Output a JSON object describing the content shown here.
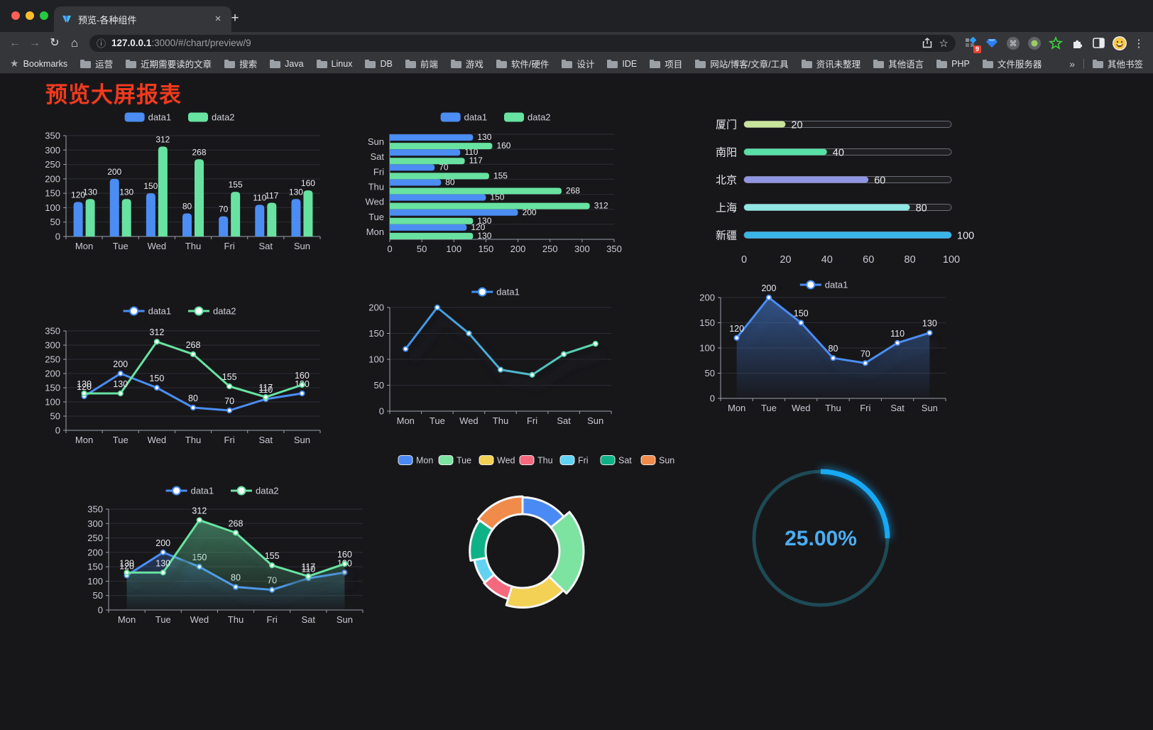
{
  "browser": {
    "window_buttons": {
      "close_color": "#ff5f57",
      "minimize_color": "#febc2e",
      "zoom_color": "#28c840"
    },
    "tab": {
      "title": "预览-各种组件",
      "close_label": "×",
      "new_tab_label": "+"
    },
    "address": {
      "host": "127.0.0.1",
      "rest": ":3000/#/chart/preview/9"
    },
    "extension_badge": "9",
    "bookmarks_bar": {
      "label": "Bookmarks",
      "folders": [
        "运营",
        "近期需要读的文章",
        "搜索",
        "Java",
        "Linux",
        "DB",
        "前端",
        "游戏",
        "软件/硬件",
        "设计",
        "IDE",
        "项目",
        "网站/博客/文章/工具",
        "资讯未整理",
        "其他语言",
        "PHP",
        "文件服务器"
      ],
      "overflow": "»",
      "other": "其他书签"
    }
  },
  "page": {
    "title": "预览大屏报表",
    "title_color": "#f23a1d"
  },
  "chart_data": [
    {
      "id": "grouped-bar",
      "type": "bar",
      "legend_position": "top",
      "grid": true,
      "categories": [
        "Mon",
        "Tue",
        "Wed",
        "Thu",
        "Fri",
        "Sat",
        "Sun"
      ],
      "series": [
        {
          "name": "data1",
          "color": "#4b8df2",
          "values": [
            120,
            200,
            150,
            80,
            70,
            110,
            130
          ]
        },
        {
          "name": "data2",
          "color": "#68e2a1",
          "values": [
            130,
            130,
            312,
            268,
            155,
            117,
            160
          ]
        }
      ],
      "ylim": [
        0,
        350
      ],
      "ystep": 50
    },
    {
      "id": "horizontal-bar",
      "type": "bar",
      "orientation": "horizontal",
      "legend_position": "top",
      "grid": true,
      "categories": [
        "Mon",
        "Tue",
        "Wed",
        "Thu",
        "Fri",
        "Sat",
        "Sun"
      ],
      "series": [
        {
          "name": "data1",
          "color": "#4b8df2",
          "values": [
            120,
            200,
            150,
            80,
            70,
            110,
            130
          ]
        },
        {
          "name": "data2",
          "color": "#68e2a1",
          "values": [
            130,
            130,
            312,
            268,
            155,
            117,
            160
          ]
        }
      ],
      "xlim": [
        0,
        350
      ],
      "xstep": 50
    },
    {
      "id": "progress-bars",
      "type": "bar",
      "subtype": "progress",
      "items": [
        {
          "label": "厦门",
          "value": 20,
          "color": "#c9e59b"
        },
        {
          "label": "南阳",
          "value": 40,
          "color": "#57dfa6"
        },
        {
          "label": "北京",
          "value": 60,
          "color": "#9096e2"
        },
        {
          "label": "上海",
          "value": 80,
          "color": "#8fe7e2"
        },
        {
          "label": "新疆",
          "value": 100,
          "color": "#3ab5e8"
        }
      ],
      "xlim": [
        0,
        100
      ],
      "xticks": [
        0,
        20,
        40,
        60,
        80,
        100
      ]
    },
    {
      "id": "multi-line",
      "type": "line",
      "legend_position": "top",
      "labels": true,
      "categories": [
        "Mon",
        "Tue",
        "Wed",
        "Thu",
        "Fri",
        "Sat",
        "Sun"
      ],
      "series": [
        {
          "name": "data1",
          "color": "#4b8df2",
          "values": [
            120,
            200,
            150,
            80,
            70,
            110,
            130
          ]
        },
        {
          "name": "data2",
          "color": "#68e2a1",
          "values": [
            130,
            130,
            312,
            268,
            155,
            117,
            160
          ]
        }
      ],
      "ylim": [
        0,
        350
      ],
      "ystep": 50
    },
    {
      "id": "gradient-line",
      "type": "line",
      "legend_position": "top",
      "labels": false,
      "shadow": true,
      "categories": [
        "Mon",
        "Tue",
        "Wed",
        "Thu",
        "Fri",
        "Sat",
        "Sun"
      ],
      "series": [
        {
          "name": "data1",
          "color_start": "#3f8df2",
          "color_end": "#5fe2a0",
          "values": [
            120,
            200,
            150,
            80,
            70,
            110,
            130
          ]
        }
      ],
      "ylim": [
        0,
        200
      ],
      "ystep": 50
    },
    {
      "id": "area-line",
      "type": "line",
      "legend_position": "top",
      "labels": true,
      "shadow": true,
      "categories": [
        "Mon",
        "Tue",
        "Wed",
        "Thu",
        "Fri",
        "Sat",
        "Sun"
      ],
      "series": [
        {
          "name": "data1",
          "color": "#4b8df2",
          "values": [
            120,
            200,
            150,
            80,
            70,
            110,
            130
          ],
          "area": true
        }
      ],
      "ylim": [
        0,
        200
      ],
      "ystep": 50
    },
    {
      "id": "multi-area-line",
      "type": "line",
      "legend_position": "top",
      "labels": true,
      "shadow": true,
      "categories": [
        "Mon",
        "Tue",
        "Wed",
        "Thu",
        "Fri",
        "Sat",
        "Sun"
      ],
      "series": [
        {
          "name": "data1",
          "color": "#4b8df2",
          "values": [
            120,
            200,
            150,
            80,
            70,
            110,
            130
          ],
          "area": true
        },
        {
          "name": "data2",
          "color": "#68e2a1",
          "values": [
            130,
            130,
            312,
            268,
            155,
            117,
            160
          ],
          "area": true
        }
      ],
      "ylim": [
        0,
        350
      ],
      "ystep": 50
    },
    {
      "id": "rose-donut",
      "type": "pie",
      "subtype": "rose-donut",
      "legend_position": "top",
      "categories": [
        "Mon",
        "Tue",
        "Wed",
        "Thu",
        "Fri",
        "Sat",
        "Sun"
      ],
      "values": [
        120,
        200,
        150,
        80,
        70,
        110,
        130
      ],
      "colors": [
        "#4a8af4",
        "#7de3a1",
        "#f2d154",
        "#f4697d",
        "#62d2f2",
        "#0fb286",
        "#f08b4b"
      ]
    },
    {
      "id": "gauge",
      "type": "gauge",
      "value": 25,
      "display": "25.00%",
      "color": "#17a9f6",
      "track_color": "#1d4a55",
      "text_color": "#4aaef2"
    }
  ]
}
